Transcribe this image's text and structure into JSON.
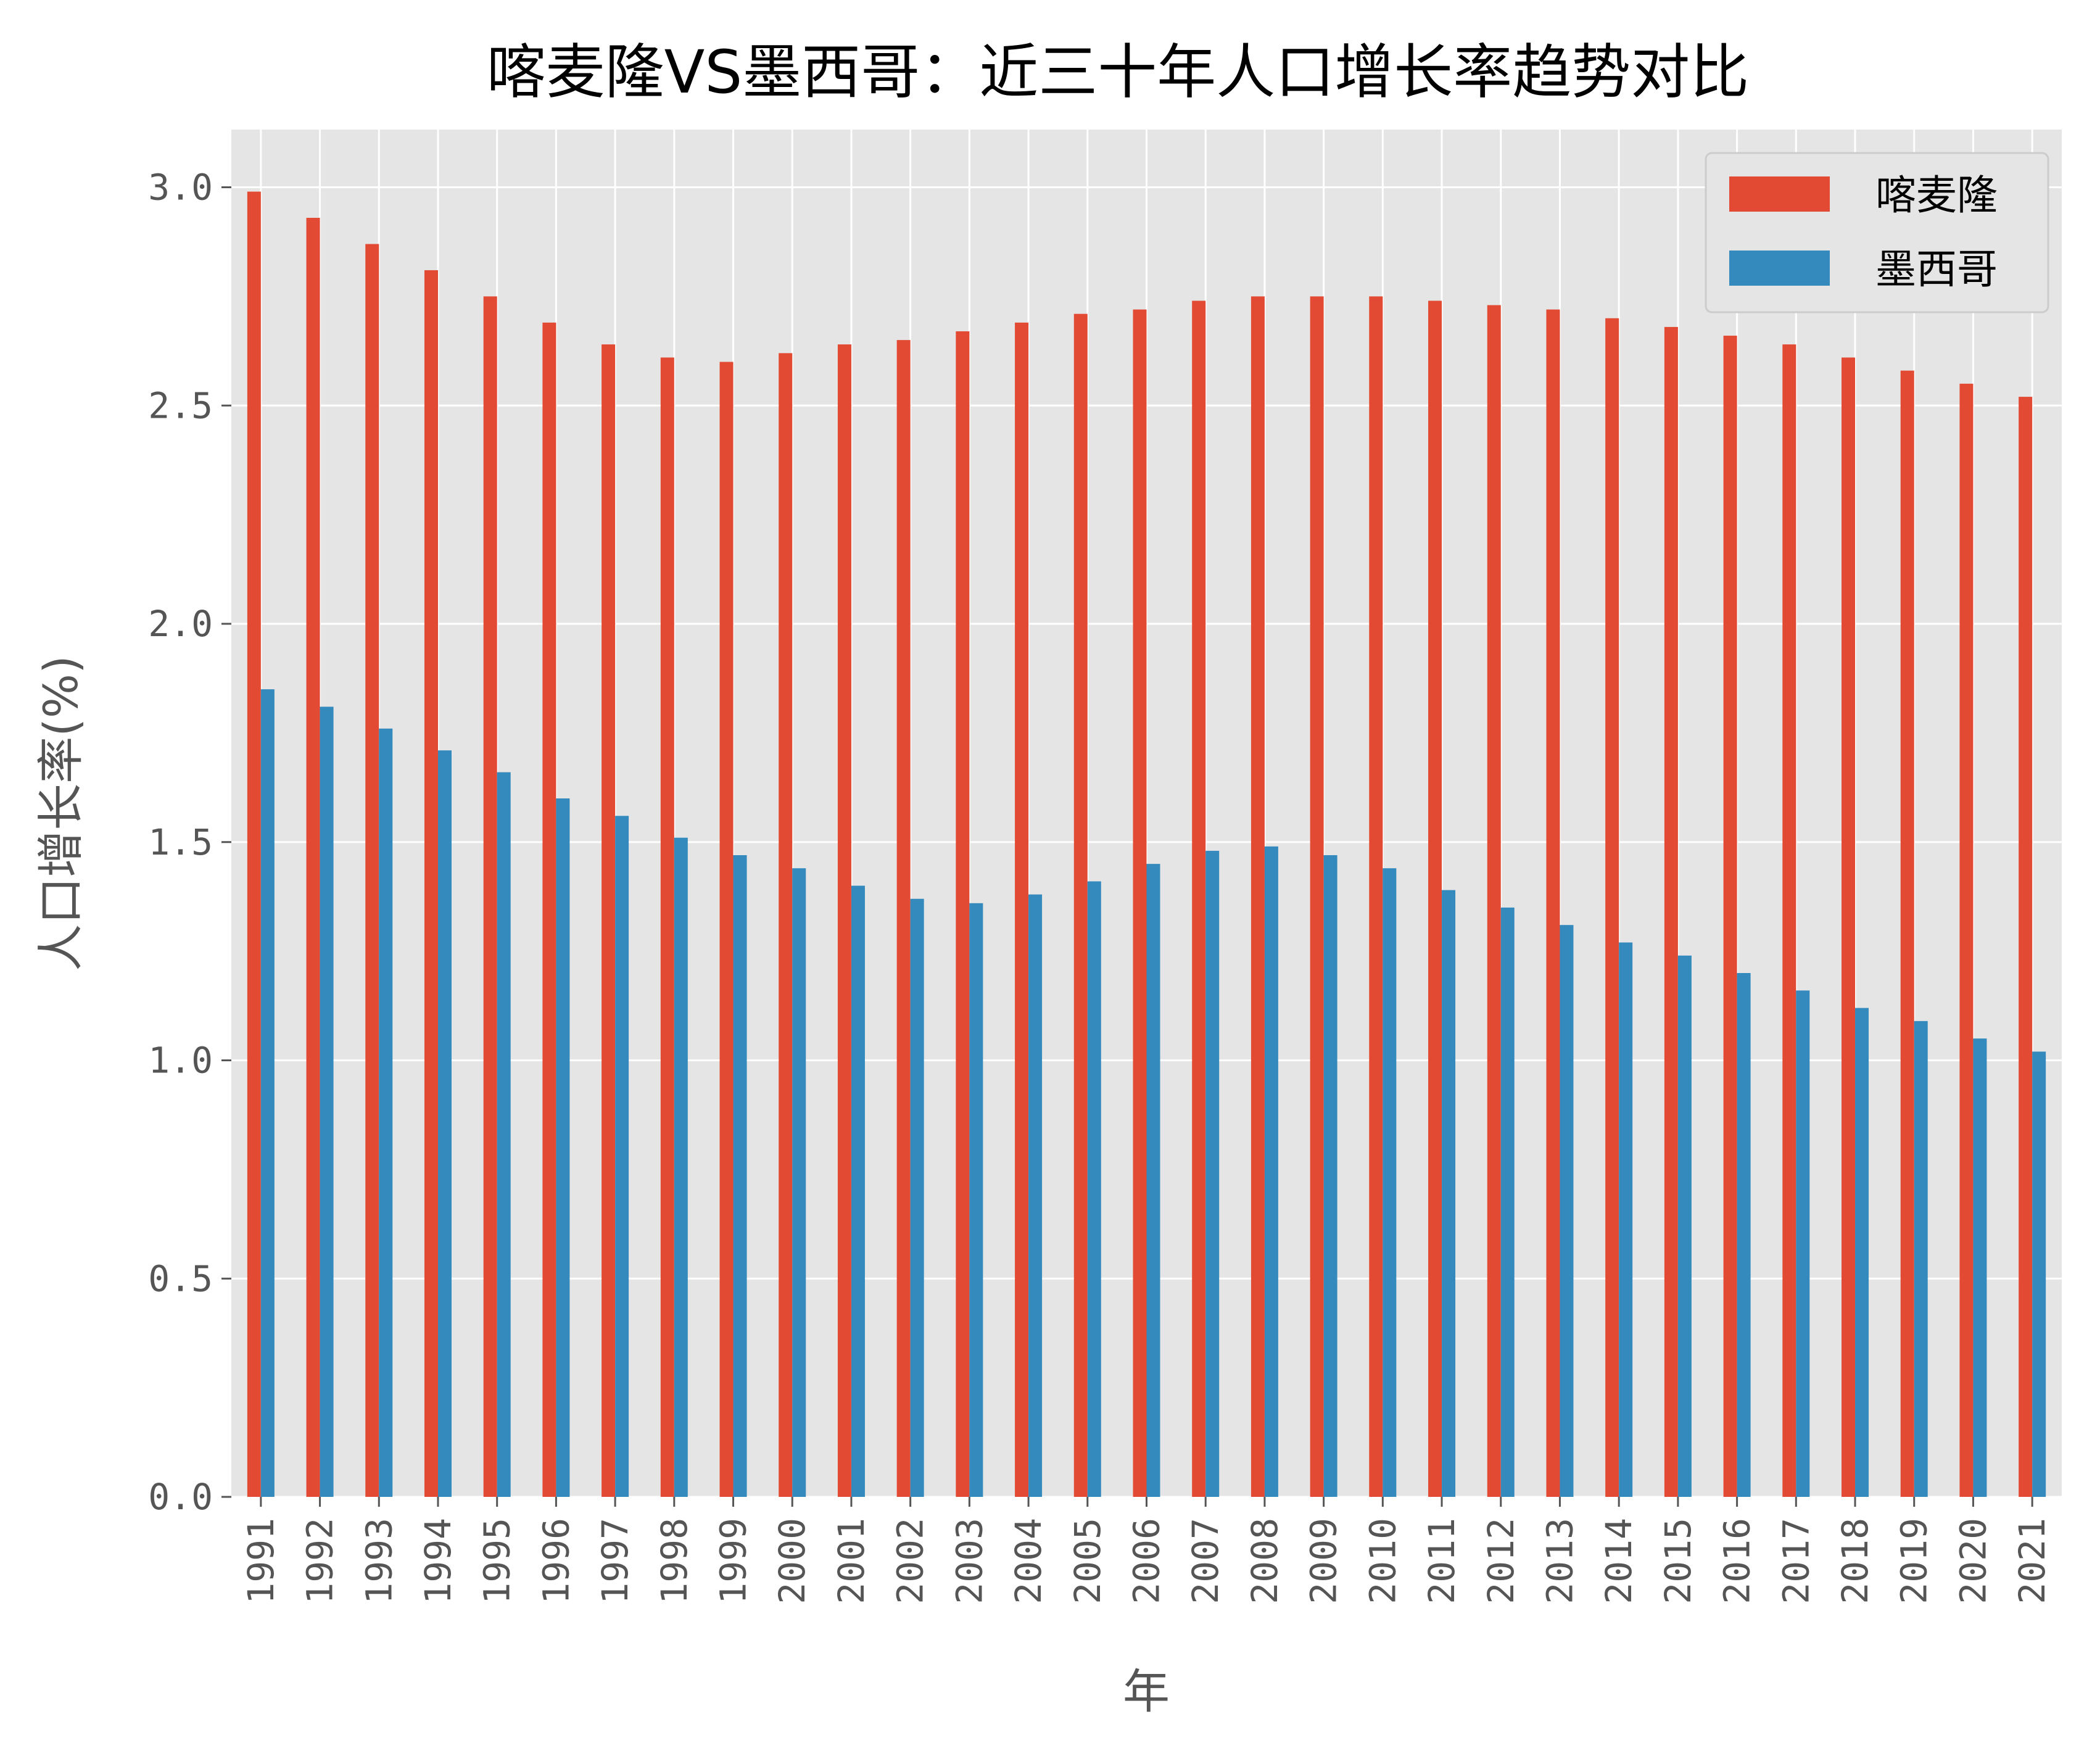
{
  "chart_data": {
    "type": "bar",
    "title": "喀麦隆VS墨西哥：近三十年人口增长率趋势对比",
    "xlabel": "年",
    "ylabel": "人口增长率(%)",
    "ylim": [
      0,
      3.15
    ],
    "yticks": [
      "0.0",
      "0.5",
      "1.0",
      "1.5",
      "2.0",
      "2.5",
      "3.0"
    ],
    "grid": true,
    "legend_position": "top-right",
    "categories": [
      "1991",
      "1992",
      "1993",
      "1994",
      "1995",
      "1996",
      "1997",
      "1998",
      "1999",
      "2000",
      "2001",
      "2002",
      "2003",
      "2004",
      "2005",
      "2006",
      "2007",
      "2008",
      "2009",
      "2010",
      "2011",
      "2012",
      "2013",
      "2014",
      "2015",
      "2016",
      "2017",
      "2018",
      "2019",
      "2020",
      "2021"
    ],
    "series": [
      {
        "name": "喀麦隆",
        "color": "#E24A33",
        "values": [
          2.99,
          2.93,
          2.87,
          2.81,
          2.75,
          2.69,
          2.64,
          2.61,
          2.6,
          2.62,
          2.64,
          2.65,
          2.67,
          2.69,
          2.71,
          2.72,
          2.74,
          2.75,
          2.75,
          2.75,
          2.74,
          2.73,
          2.72,
          2.7,
          2.68,
          2.66,
          2.64,
          2.61,
          2.58,
          2.55,
          2.52
        ]
      },
      {
        "name": "墨西哥",
        "color": "#348ABD",
        "values": [
          1.85,
          1.81,
          1.76,
          1.71,
          1.66,
          1.6,
          1.56,
          1.51,
          1.47,
          1.44,
          1.4,
          1.37,
          1.36,
          1.38,
          1.41,
          1.45,
          1.48,
          1.49,
          1.47,
          1.44,
          1.39,
          1.35,
          1.31,
          1.27,
          1.24,
          1.2,
          1.16,
          1.12,
          1.09,
          1.05,
          1.02
        ]
      }
    ]
  },
  "style": {
    "plot_background": "#E5E5E5",
    "grid_color": "#FFFFFF",
    "tick_color": "#555555"
  }
}
